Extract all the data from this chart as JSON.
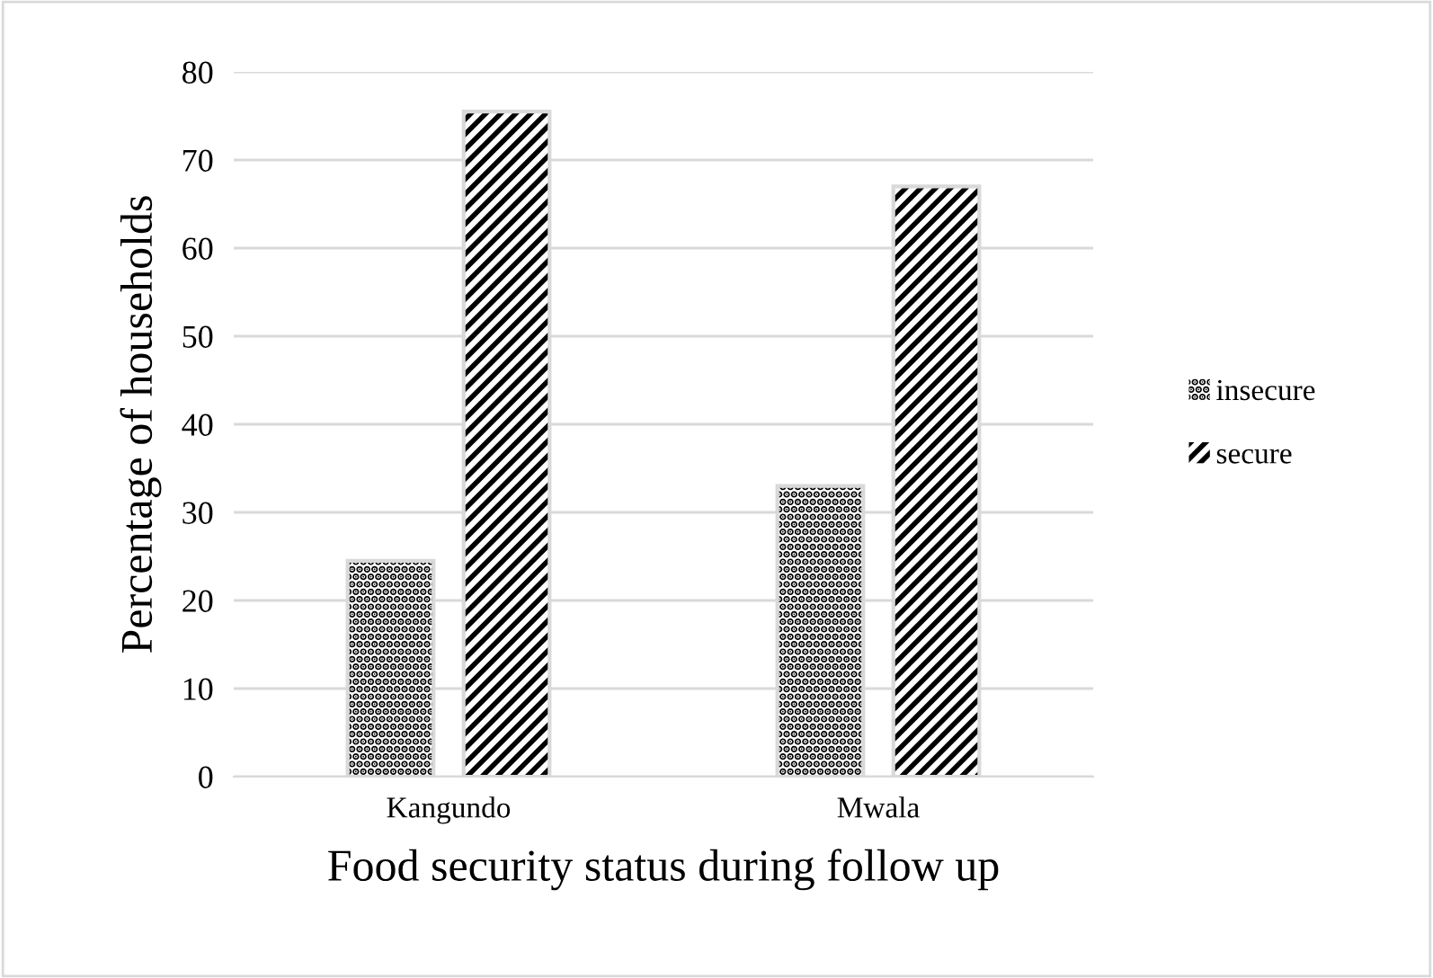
{
  "chart_data": {
    "type": "bar",
    "xlabel": "Food security status during follow up",
    "ylabel": "Percentage of households",
    "categories": [
      "Kangundo",
      "Mwala"
    ],
    "series": [
      {
        "name": "insecure",
        "color": "#000000",
        "values": [
          24.5,
          33
        ]
      },
      {
        "name": "secure",
        "color": "#000000",
        "values": [
          75.5,
          67
        ]
      }
    ],
    "ylim": [
      0,
      80
    ],
    "yticks": [
      0,
      10,
      20,
      30,
      40,
      50,
      60,
      70,
      80
    ],
    "grid": "y",
    "legend": "right"
  }
}
